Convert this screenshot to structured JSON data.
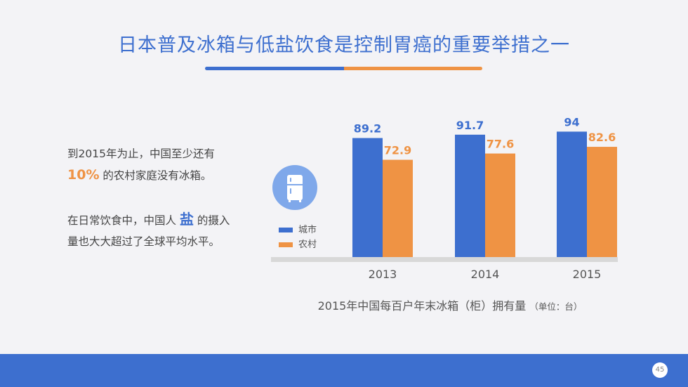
{
  "title": "日本普及冰箱与低盐饮食是控制胃癌的重要举措之一",
  "colors": {
    "accent_blue": "#3d6fcf",
    "accent_orange": "#ef9344",
    "footer": "#3d6fcf"
  },
  "left_text": {
    "p1_prefix": "到2015年为止，中国至少还有",
    "p1_highlight": "10%",
    "p1_suffix": " 的农村家庭没有冰箱。",
    "p2_prefix": "在日常饮食中，中国人 ",
    "p2_highlight": "盐",
    "p2_suffix": " 的摄入量也大大超过了全球平均水平。"
  },
  "fridge_icon": "fridge-icon",
  "legend": {
    "city": "城市",
    "rural": "农村"
  },
  "caption": {
    "main": "2015年中国每百户年末冰箱（柜）拥有量",
    "unit": "（单位：台）"
  },
  "page_number": "45",
  "chart_data": {
    "type": "bar",
    "categories": [
      "2013",
      "2014",
      "2015"
    ],
    "series": [
      {
        "name": "城市",
        "values": [
          89.2,
          91.7,
          94
        ],
        "labels": [
          "89.2",
          "91.7",
          "94"
        ],
        "color": "#3d6fcf"
      },
      {
        "name": "农村",
        "values": [
          72.9,
          77.6,
          82.6
        ],
        "labels": [
          "72.9",
          "77.6",
          "82.6"
        ],
        "color": "#ef9344"
      }
    ],
    "title": "2015年中国每百户年末冰箱（柜）拥有量",
    "unit": "（单位：台）",
    "ylim": [
      0,
      100
    ],
    "grid": false,
    "legend_position": "left"
  }
}
